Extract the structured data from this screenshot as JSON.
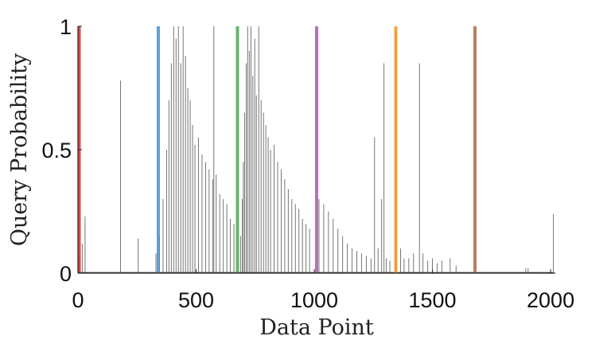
{
  "chart_data": {
    "type": "line",
    "title": "",
    "xlabel": "Data Point",
    "ylabel": "Query Probability",
    "xlim": [
      0,
      2020
    ],
    "ylim": [
      0,
      1
    ],
    "x_ticks": [
      0,
      500,
      1000,
      1500,
      2000
    ],
    "x_tick_labels": [
      "0",
      "500",
      "1000",
      "1500",
      "2000"
    ],
    "y_ticks": [
      0,
      0.5,
      1
    ],
    "y_tick_labels": [
      "0",
      "0.5",
      "1"
    ],
    "grid": false,
    "legend": "none",
    "series": [
      {
        "style": "thin grey line",
        "color": "#555555",
        "spikes": [
          [
            8,
            0.06
          ],
          [
            18,
            0.12
          ],
          [
            30,
            0.23
          ],
          [
            180,
            0.78
          ],
          [
            255,
            0.14
          ],
          [
            330,
            0.08
          ],
          [
            345,
            0.15
          ],
          [
            360,
            0.3
          ],
          [
            375,
            0.5
          ],
          [
            385,
            0.7
          ],
          [
            395,
            0.85
          ],
          [
            405,
            1.0
          ],
          [
            415,
            0.95
          ],
          [
            425,
            1.0
          ],
          [
            435,
            0.85
          ],
          [
            445,
            1.0
          ],
          [
            455,
            0.88
          ],
          [
            465,
            0.75
          ],
          [
            475,
            0.7
          ],
          [
            485,
            0.6
          ],
          [
            495,
            0.52
          ],
          [
            510,
            0.55
          ],
          [
            525,
            0.48
          ],
          [
            540,
            0.45
          ],
          [
            555,
            0.42
          ],
          [
            570,
            0.38
          ],
          [
            585,
            0.4
          ],
          [
            600,
            0.32
          ],
          [
            615,
            0.3
          ],
          [
            630,
            0.28
          ],
          [
            645,
            0.22
          ],
          [
            660,
            0.2
          ],
          [
            575,
            1.0
          ],
          [
            688,
            0.15
          ],
          [
            695,
            0.3
          ],
          [
            700,
            0.45
          ],
          [
            705,
            0.65
          ],
          [
            712,
            0.85
          ],
          [
            718,
            1.0
          ],
          [
            725,
            0.9
          ],
          [
            732,
            1.0
          ],
          [
            740,
            0.8
          ],
          [
            748,
            0.95
          ],
          [
            755,
            0.72
          ],
          [
            765,
            1.0
          ],
          [
            775,
            0.7
          ],
          [
            785,
            0.65
          ],
          [
            795,
            0.6
          ],
          [
            805,
            0.55
          ],
          [
            815,
            0.5
          ],
          [
            830,
            0.52
          ],
          [
            845,
            0.45
          ],
          [
            860,
            0.42
          ],
          [
            875,
            0.38
          ],
          [
            890,
            0.34
          ],
          [
            905,
            0.3
          ],
          [
            920,
            0.28
          ],
          [
            935,
            0.26
          ],
          [
            950,
            0.22
          ],
          [
            965,
            0.2
          ],
          [
            980,
            0.18
          ],
          [
            1020,
            0.3
          ],
          [
            1040,
            0.28
          ],
          [
            1060,
            0.25
          ],
          [
            1080,
            0.22
          ],
          [
            1100,
            0.18
          ],
          [
            1120,
            0.15
          ],
          [
            1140,
            0.12
          ],
          [
            1160,
            0.1
          ],
          [
            1180,
            0.09
          ],
          [
            1200,
            0.08
          ],
          [
            1220,
            0.07
          ],
          [
            1240,
            0.06
          ],
          [
            1255,
            0.55
          ],
          [
            1270,
            0.1
          ],
          [
            1285,
            0.3
          ],
          [
            1295,
            0.85
          ],
          [
            1305,
            0.06
          ],
          [
            1320,
            0.05
          ],
          [
            1345,
            0.98
          ],
          [
            1365,
            0.1
          ],
          [
            1380,
            0.06
          ],
          [
            1400,
            0.06
          ],
          [
            1420,
            0.08
          ],
          [
            1445,
            0.85
          ],
          [
            1460,
            0.08
          ],
          [
            1480,
            0.05
          ],
          [
            1500,
            0.06
          ],
          [
            1520,
            0.04
          ],
          [
            1540,
            0.05
          ],
          [
            1575,
            0.06
          ],
          [
            1600,
            0.03
          ],
          [
            1895,
            0.02
          ],
          [
            1905,
            0.02
          ],
          [
            2012,
            0.24
          ]
        ]
      }
    ],
    "vertical_lines": [
      {
        "x": 5,
        "color": "#d62a2a"
      },
      {
        "x": 340,
        "color": "#4b8fc8"
      },
      {
        "x": 675,
        "color": "#4aab4a"
      },
      {
        "x": 1010,
        "color": "#a25aaa"
      },
      {
        "x": 1345,
        "color": "#f6961e"
      },
      {
        "x": 1680,
        "color": "#b0673a"
      }
    ]
  }
}
